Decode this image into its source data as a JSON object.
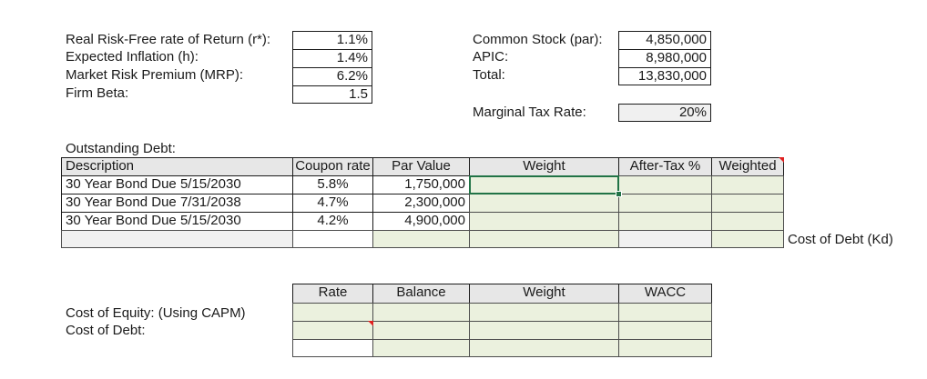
{
  "assumptions": {
    "rows": [
      {
        "label": "Real Risk-Free rate of Return (r*):",
        "value": "1.1%"
      },
      {
        "label": "Expected Inflation (h):",
        "value": "1.4%"
      },
      {
        "label": "Market Risk Premium (MRP):",
        "value": "6.2%"
      },
      {
        "label": "Firm Beta:",
        "value": "1.5"
      }
    ]
  },
  "equity": {
    "rows": [
      {
        "label": "Common Stock (par):",
        "value": "4,850,000"
      },
      {
        "label": "APIC:",
        "value": "8,980,000"
      },
      {
        "label": "Total:",
        "value": "13,830,000"
      }
    ],
    "tax_label": "Marginal Tax Rate:",
    "tax_value": "20%"
  },
  "debt": {
    "section_title": "Outstanding Debt:",
    "headers": {
      "description": "Description",
      "coupon": "Coupon rate",
      "par": "Par Value",
      "weight": "Weight",
      "after_tax": "After-Tax %",
      "weighted": "Weighted"
    },
    "rows": [
      {
        "description": "30 Year Bond Due 5/15/2030",
        "coupon": "5.8%",
        "par": "1,750,000"
      },
      {
        "description": "30 Year Bond Due 7/31/2038",
        "coupon": "4.7%",
        "par": "2,300,000"
      },
      {
        "description": "30 Year Bond Due 5/15/2030",
        "coupon": "4.2%",
        "par": "4,900,000"
      }
    ],
    "cost_of_debt_label": "Cost of Debt (Kd)"
  },
  "wacc": {
    "headers": {
      "rate": "Rate",
      "balance": "Balance",
      "weight": "Weight",
      "wacc": "WACC"
    },
    "row_labels": [
      "Cost of Equity: (Using CAPM)",
      "Cost of Debt:"
    ]
  },
  "colors": {
    "input_fill": "#ebf1de",
    "selection": "#217346",
    "comment_marker": "#e02020"
  }
}
